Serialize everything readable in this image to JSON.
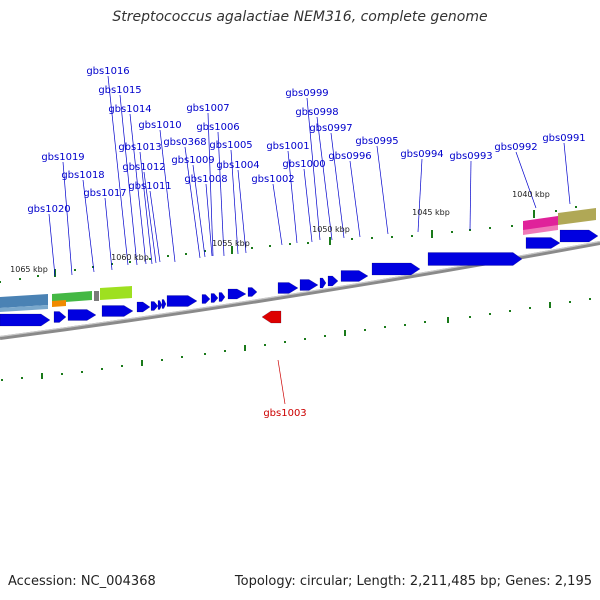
{
  "title": "Streptococcus agalactiae NEM316, complete genome",
  "footer": {
    "accession": "Accession: NC_004368",
    "topology": "Topology: circular",
    "length": "Length: 2,211,485 bp",
    "genes": "Genes: 2,195"
  },
  "colors": {
    "background": "#ffffff",
    "gene_forward": "#0000e0",
    "gene_label": "#0000cc",
    "gene_highlight": "#dd0000",
    "label_highlight": "#cc0000",
    "tick": "#1a7a1a",
    "backbone": "#8a8a8a"
  },
  "position_ticks": [
    "1065 kbp",
    "1060 kbp",
    "1055 kbp",
    "1050 kbp",
    "1045 kbp",
    "1040 kbp"
  ],
  "upper_gene_labels": [
    "gbs1016",
    "gbs1015",
    "gbs1014",
    "gbs1013",
    "gbs1012",
    "gbs1011",
    "gbs1010",
    "gbs1007",
    "gbs1006",
    "gbs1005",
    "gbs1004",
    "gbs0368",
    "gbs1009",
    "gbs1008",
    "gbs1019",
    "gbs1018",
    "gbs1017",
    "gbs1020",
    "gbs0999",
    "gbs0998",
    "gbs0997",
    "gbs0996",
    "gbs1001",
    "gbs1000",
    "gbs1002",
    "gbs0995",
    "gbs0994",
    "gbs0993",
    "gbs0992",
    "gbs0991"
  ],
  "lower_gene_labels": [
    "gbs1003"
  ]
}
